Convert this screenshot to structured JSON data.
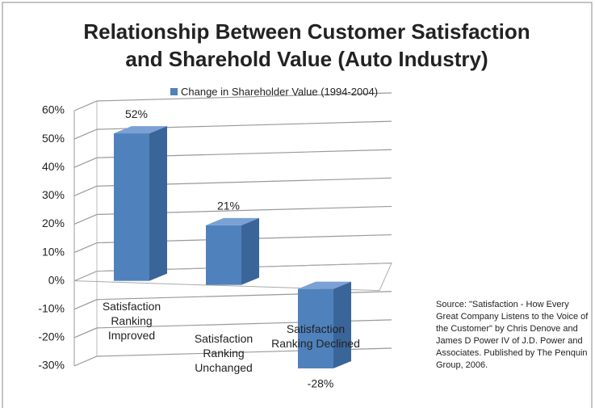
{
  "chart_data": {
    "type": "bar3d",
    "title": "Relationship Between Customer Satisfaction and Sharehold Value (Auto Industry)",
    "categories": [
      "Satisfaction Ranking Improved",
      "Satisfaction Ranking Unchanged",
      "Satisfaction Ranking Declined"
    ],
    "series": [
      {
        "name": "Change in Shareholder Value (1994-2004)",
        "color": "#4f81bd",
        "values": [
          52,
          21,
          -28
        ],
        "value_labels": [
          "52%",
          "21%",
          "-28%"
        ]
      }
    ],
    "ylim": [
      -30,
      60
    ],
    "yticks": [
      {
        "value": -30,
        "label": "-30%"
      },
      {
        "value": -20,
        "label": "-20%"
      },
      {
        "value": -10,
        "label": "-10%"
      },
      {
        "value": 0,
        "label": "0%"
      },
      {
        "value": 10,
        "label": "10%"
      },
      {
        "value": 20,
        "label": "20%"
      },
      {
        "value": 30,
        "label": "30%"
      },
      {
        "value": 40,
        "label": "40%"
      },
      {
        "value": 50,
        "label": "50%"
      },
      {
        "value": 60,
        "label": "60%"
      }
    ],
    "grid": true,
    "legend": "top",
    "annotation": "Source: \"Satisfaction - How Every Great Company Listens to the Voice of the Customer\" by Chris Denove and James D Power IV of J.D. Power and Associates. Published by The Penquin Group, 2006."
  }
}
